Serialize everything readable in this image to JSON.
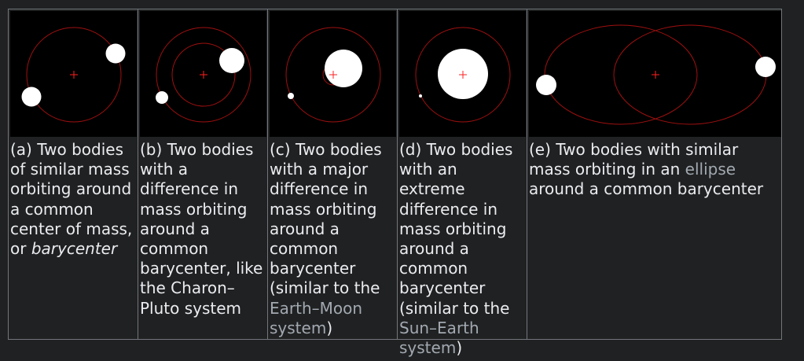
{
  "panels": [
    {
      "caption_a": "(a) Two bodies of similar mass orbiting around a common center of mass, or ",
      "caption_italic": "barycenter"
    },
    {
      "caption_a": "(b) Two bodies with a difference in mass orbiting around a common barycenter, like the Charon–Pluto system"
    },
    {
      "caption_a": "(c) Two bodies with a major difference in mass orbiting around a common barycenter (similar to the ",
      "link": "Earth–Moon system",
      "caption_b": ")"
    },
    {
      "caption_a": "(d) Two bodies with an extreme difference in mass orbiting around a common barycenter (similar to the ",
      "link": "Sun–Earth system",
      "caption_b": ")"
    },
    {
      "caption_a": "(e) Two bodies with similar mass orbiting in an ",
      "link": "ellipse",
      "caption_b": " around a common barycenter"
    }
  ],
  "colors": {
    "background": "#202122",
    "border": "#72777d",
    "text": "#eaecf0",
    "link": "#a2a9b1",
    "orbit": "#a01010",
    "barycenter": "#ff2020"
  }
}
